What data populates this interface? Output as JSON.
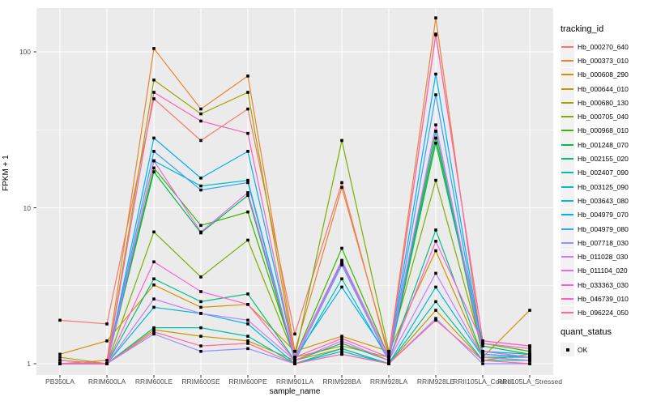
{
  "chart_data": {
    "type": "line",
    "title": "",
    "xlabel": "sample_name",
    "ylabel": "FPKM + 1",
    "y_scale": "log10",
    "ylim": [
      0.85,
      190
    ],
    "y_major_ticks": [
      100,
      10,
      1
    ],
    "y_minor_gridlines": [
      3.162,
      31.62
    ],
    "grid": "on",
    "panel_color": "#EBEBEB",
    "gridline_color": "#FFFFFF",
    "legend_position": "right",
    "legend_titles": {
      "color": "tracking_id",
      "shape": "quant_status"
    },
    "quant_status_value": "OK",
    "marker": {
      "shape": "black-square",
      "color": "#000000"
    },
    "categories": [
      "PB350LA",
      "RRIM600LA",
      "RRIM600LE",
      "RRIM600SE",
      "RRIM600PE",
      "RRIM901LA",
      "RRIM928BA",
      "RRIM928LA",
      "RRIM928LE",
      "RRII105LA_Control",
      "RRII105LA_Stressed"
    ],
    "series": [
      {
        "name": "Hb_000270_640",
        "color": "#F8766D",
        "values": [
          1.9,
          1.8,
          50,
          27,
          43,
          1.55,
          14.5,
          1.1,
          130,
          1.4,
          1.3
        ]
      },
      {
        "name": "Hb_000373_010",
        "color": "#EA8331",
        "values": [
          1.0,
          1.05,
          105,
          43,
          70,
          1.2,
          13.5,
          1.15,
          165,
          1.15,
          1.1
        ]
      },
      {
        "name": "Hb_000608_290",
        "color": "#D89000",
        "values": [
          1.15,
          1.4,
          3.2,
          2.3,
          2.4,
          1.2,
          1.5,
          1.2,
          5.3,
          1.1,
          2.2
        ]
      },
      {
        "name": "Hb_000644_010",
        "color": "#C09B00",
        "values": [
          1.0,
          1.0,
          1.65,
          1.5,
          1.4,
          1.05,
          1.25,
          1.0,
          2.2,
          1.05,
          1.15
        ]
      },
      {
        "name": "Hb_000680_130",
        "color": "#A3A500",
        "values": [
          1.1,
          1.0,
          66,
          40,
          55,
          1.1,
          1.3,
          1.1,
          31,
          1.1,
          1.05
        ]
      },
      {
        "name": "Hb_000705_040",
        "color": "#7CAE00",
        "values": [
          1.0,
          1.0,
          7.0,
          3.6,
          6.2,
          1.1,
          27,
          1.2,
          15,
          1.2,
          1.1
        ]
      },
      {
        "name": "Hb_000968_010",
        "color": "#39B600",
        "values": [
          1.05,
          1.0,
          18,
          7.7,
          9.4,
          1.1,
          5.5,
          1.1,
          28,
          1.35,
          1.2
        ]
      },
      {
        "name": "Hb_001248_070",
        "color": "#00BB4E",
        "values": [
          1.0,
          1.0,
          17,
          6.9,
          12,
          1.05,
          4.5,
          1.05,
          26,
          1.3,
          1.15
        ]
      },
      {
        "name": "Hb_002155_020",
        "color": "#00BF7D",
        "values": [
          1.0,
          1.0,
          3.5,
          2.5,
          2.8,
          1.05,
          1.35,
          1.05,
          7.2,
          1.1,
          1.1
        ]
      },
      {
        "name": "Hb_002407_090",
        "color": "#00C1A3",
        "values": [
          1.0,
          1.0,
          1.7,
          1.7,
          1.5,
          1.0,
          1.25,
          1.0,
          2.5,
          1.05,
          1.05
        ]
      },
      {
        "name": "Hb_003125_090",
        "color": "#00BFC4",
        "values": [
          1.0,
          1.0,
          20,
          13.8,
          15,
          1.05,
          3.5,
          1.05,
          31,
          1.15,
          1.1
        ]
      },
      {
        "name": "Hb_003643_080",
        "color": "#00BAE0",
        "values": [
          1.0,
          1.0,
          2.3,
          2.1,
          1.8,
          1.0,
          1.2,
          1.0,
          3.1,
          1.1,
          1.05
        ]
      },
      {
        "name": "Hb_004979_070",
        "color": "#00B0F6",
        "values": [
          1.0,
          1.0,
          28,
          15.5,
          23,
          1.1,
          3.1,
          1.1,
          72,
          1.2,
          1.15
        ]
      },
      {
        "name": "Hb_004979_080",
        "color": "#35A2FF",
        "values": [
          1.0,
          1.0,
          23,
          13,
          14.5,
          1.05,
          4.3,
          1.05,
          53,
          1.15,
          1.1
        ]
      },
      {
        "name": "Hb_007718_030",
        "color": "#9590FF",
        "values": [
          1.0,
          1.0,
          1.55,
          1.2,
          1.25,
          1.0,
          1.15,
          1.0,
          1.95,
          1.0,
          1.0
        ]
      },
      {
        "name": "Hb_011028_030",
        "color": "#C77CFF",
        "values": [
          1.0,
          1.0,
          2.6,
          2.1,
          1.9,
          1.05,
          4.4,
          1.05,
          3.8,
          1.1,
          1.05
        ]
      },
      {
        "name": "Hb_011104_020",
        "color": "#E76BF3",
        "values": [
          1.0,
          1.0,
          20,
          7.0,
          12.5,
          1.1,
          4.6,
          1.1,
          34,
          1.2,
          1.1
        ]
      },
      {
        "name": "Hb_033363_030",
        "color": "#FA62DB",
        "values": [
          1.0,
          1.0,
          4.5,
          2.9,
          2.4,
          1.05,
          1.4,
          1.05,
          6.1,
          1.35,
          1.25
        ]
      },
      {
        "name": "Hb_046739_010",
        "color": "#FF62BC",
        "values": [
          1.05,
          1.0,
          55,
          36,
          30,
          1.1,
          1.45,
          1.1,
          128,
          1.4,
          1.3
        ]
      },
      {
        "name": "Hb_096224_050",
        "color": "#FF6A98",
        "values": [
          1.0,
          1.0,
          1.6,
          1.3,
          1.35,
          1.0,
          1.15,
          1.0,
          1.9,
          1.05,
          1.0
        ]
      }
    ]
  }
}
